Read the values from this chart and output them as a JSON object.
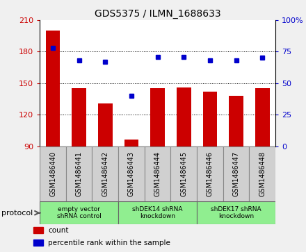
{
  "title": "GDS5375 / ILMN_1688633",
  "samples": [
    "GSM1486440",
    "GSM1486441",
    "GSM1486442",
    "GSM1486443",
    "GSM1486444",
    "GSM1486445",
    "GSM1486446",
    "GSM1486447",
    "GSM1486448"
  ],
  "counts": [
    200,
    145,
    131,
    96,
    145,
    146,
    142,
    138,
    145
  ],
  "percentiles": [
    78,
    68,
    67,
    40,
    71,
    71,
    68,
    68,
    70
  ],
  "groups": [
    {
      "label": "empty vector\nshRNA control",
      "start": 0,
      "end": 2
    },
    {
      "label": "shDEK14 shRNA\nknockdown",
      "start": 3,
      "end": 5
    },
    {
      "label": "shDEK17 shRNA\nknockdown",
      "start": 6,
      "end": 8
    }
  ],
  "protocol_label": "protocol",
  "ylim_left": [
    90,
    210
  ],
  "ylim_right": [
    0,
    100
  ],
  "yticks_left": [
    90,
    120,
    150,
    180,
    210
  ],
  "yticks_right": [
    0,
    25,
    50,
    75,
    100
  ],
  "ytick_right_labels": [
    "0",
    "25",
    "50",
    "75",
    "100%"
  ],
  "bar_color": "#cc0000",
  "dot_color": "#0000cc",
  "bg_color": "#f0f0f0",
  "plot_bg": "#ffffff",
  "sample_box_color": "#d0d0d0",
  "group_box_color": "#90ee90",
  "bar_width": 0.55
}
